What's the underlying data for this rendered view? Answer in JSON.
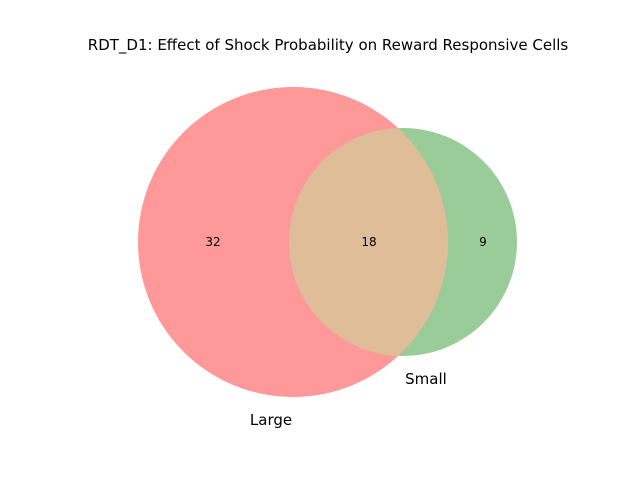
{
  "chart_data": {
    "type": "venn",
    "title": "RDT_D1: Effect of Shock Probability on Reward Responsive Cells",
    "sets": [
      {
        "name": "Large",
        "color": "#ff9999"
      },
      {
        "name": "Small",
        "color": "#99cc99"
      }
    ],
    "regions": {
      "large_only": 32,
      "intersection": 18,
      "small_only": 9
    },
    "intersection_color": "#e0bd99"
  }
}
